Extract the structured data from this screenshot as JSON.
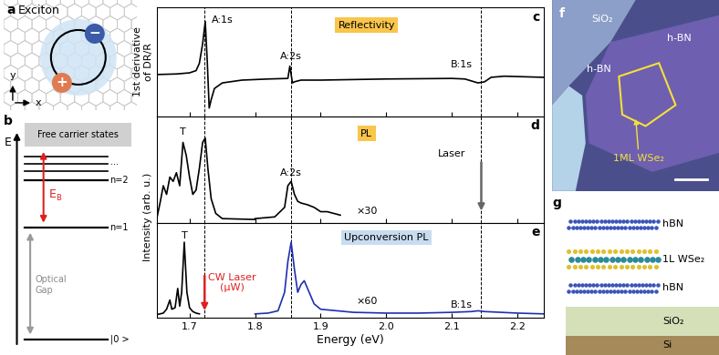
{
  "panels": {
    "a": {
      "label": "a",
      "title": "Exciton",
      "charges": [
        "−",
        "+"
      ],
      "axes": [
        "x",
        "y"
      ]
    },
    "b": {
      "label": "b",
      "energy_axis": "E",
      "continuum": "Free carrier states",
      "levels": [
        "n=1",
        "n=2"
      ],
      "more": "...",
      "binding_energy": {
        "text": "E",
        "subscript": "B"
      },
      "gap": "Optical\nGap",
      "ground": "|0 >"
    },
    "f": {
      "label": "f",
      "substrate": "SiO₂",
      "hbn": [
        "h-BN",
        "h-BN"
      ],
      "sample": "1ML WSe₂"
    },
    "g": {
      "label": "g",
      "layers": [
        "hBN",
        "1L WSe₂",
        "hBN",
        "SiO₂",
        "Si"
      ]
    }
  },
  "chart_data": [
    {
      "panel": "c",
      "type": "line",
      "ylabel": "1st derivative\nof DR/R",
      "xlim": [
        1.65,
        2.24
      ],
      "xticks": [
        1.7,
        1.8,
        1.9,
        2.0,
        2.1,
        2.2
      ],
      "ylim": [
        -0.7,
        1.25
      ],
      "tick_labels": false,
      "vlines": [
        1.723,
        1.855,
        2.145
      ],
      "box": {
        "text": "Reflectivity",
        "color": "#f9c54b",
        "x": 1.97,
        "y": 0.85
      },
      "series": [
        {
          "color": "#000000",
          "x": [
            1.65,
            1.68,
            1.7,
            1.71,
            1.715,
            1.72,
            1.724,
            1.727,
            1.73,
            1.733,
            1.738,
            1.75,
            1.78,
            1.82,
            1.85,
            1.853,
            1.857,
            1.86,
            1.87,
            1.9,
            2.0,
            2.1,
            2.12,
            2.14,
            2.15,
            2.16,
            2.18,
            2.24
          ],
          "values": [
            0.05,
            0.06,
            0.08,
            0.12,
            0.25,
            0.6,
            1.0,
            0.3,
            -0.55,
            -0.4,
            -0.2,
            -0.1,
            -0.05,
            -0.03,
            -0.02,
            0.2,
            -0.1,
            -0.08,
            -0.05,
            -0.05,
            -0.03,
            -0.02,
            -0.03,
            -0.1,
            -0.08,
            0.0,
            0.02,
            0.0
          ]
        }
      ],
      "annotations": [
        {
          "text": "A:1s",
          "x": 1.75,
          "y": 0.95
        },
        {
          "text": "A:2s",
          "x": 1.855,
          "y": 0.3
        },
        {
          "text": "B:1s",
          "x": 2.115,
          "y": 0.15
        }
      ],
      "arrows": []
    },
    {
      "panel": "d",
      "type": "line",
      "ylabel": "Intensity (arb. u.)",
      "xlim": [
        1.65,
        2.24
      ],
      "xticks": [
        1.7,
        1.8,
        1.9,
        2.0,
        2.1,
        2.2
      ],
      "ylim": [
        -0.03,
        1.2
      ],
      "tick_labels": false,
      "vlines": [
        1.723,
        1.855,
        2.145
      ],
      "box": {
        "text": "PL",
        "color": "#f9c54b",
        "x": 1.97,
        "y": 0.95
      },
      "series": [
        {
          "color": "#000000",
          "x": [
            1.65,
            1.655,
            1.66,
            1.665,
            1.67,
            1.675,
            1.68,
            1.685,
            1.69,
            1.695,
            1.7,
            1.705,
            1.71,
            1.715,
            1.72,
            1.724,
            1.728,
            1.733,
            1.74,
            1.75,
            1.8
          ],
          "values": [
            0.02,
            0.2,
            0.4,
            0.3,
            0.5,
            0.45,
            0.55,
            0.4,
            0.9,
            0.75,
            0.5,
            0.3,
            0.35,
            0.6,
            0.9,
            0.95,
            0.6,
            0.25,
            0.08,
            0.02,
            0.01
          ]
        },
        {
          "color": "#000000",
          "x": [
            1.8,
            1.83,
            1.845,
            1.85,
            1.855,
            1.86,
            1.865,
            1.87,
            1.88,
            1.89,
            1.9,
            1.91,
            1.92,
            1.93
          ],
          "values": [
            0.02,
            0.04,
            0.15,
            0.4,
            0.45,
            0.3,
            0.22,
            0.2,
            0.18,
            0.15,
            0.1,
            0.1,
            0.08,
            0.06
          ]
        }
      ],
      "annotations": [
        {
          "text": "T",
          "x": 1.69,
          "y": 0.97
        },
        {
          "text": "A:2s",
          "x": 1.855,
          "y": 0.5
        },
        {
          "text": "×30",
          "x": 1.97,
          "y": 0.05
        },
        {
          "text": "Laser",
          "x": 2.1,
          "y": 0.72
        }
      ],
      "arrows": [
        {
          "x": 2.145,
          "y_from": 0.7,
          "y_to": 0.08,
          "color": "#666666"
        }
      ]
    },
    {
      "panel": "e",
      "type": "line",
      "xlabel": "Energy (eV)",
      "xlim": [
        1.65,
        2.24
      ],
      "xticks": [
        1.7,
        1.8,
        1.9,
        2.0,
        2.1,
        2.2
      ],
      "ylim": [
        -0.03,
        1.2
      ],
      "tick_labels": "x",
      "vlines": [
        1.723,
        1.855,
        2.145
      ],
      "box": {
        "text": "Upconversion PL",
        "color": "#c8dcf0",
        "x": 2.0,
        "y": 0.95
      },
      "series": [
        {
          "color": "#000000",
          "x": [
            1.65,
            1.66,
            1.665,
            1.67,
            1.673,
            1.678,
            1.682,
            1.685,
            1.688,
            1.692,
            1.696,
            1.7,
            1.705,
            1.71,
            1.715
          ],
          "values": [
            0.01,
            0.03,
            0.08,
            0.2,
            0.08,
            0.1,
            0.35,
            0.12,
            0.3,
            0.95,
            0.3,
            0.1,
            0.05,
            0.03,
            0.02
          ]
        },
        {
          "color": "#1f2fb0",
          "x": [
            1.8,
            1.82,
            1.835,
            1.845,
            1.85,
            1.855,
            1.86,
            1.865,
            1.87,
            1.875,
            1.88,
            1.89,
            1.9,
            1.95,
            2.0,
            2.05,
            2.1,
            2.13,
            2.14,
            2.15,
            2.2,
            2.24
          ],
          "values": [
            0.02,
            0.03,
            0.06,
            0.3,
            0.7,
            0.95,
            0.6,
            0.3,
            0.4,
            0.45,
            0.35,
            0.15,
            0.08,
            0.04,
            0.03,
            0.03,
            0.04,
            0.05,
            0.06,
            0.05,
            0.03,
            0.02
          ]
        }
      ],
      "annotations": [
        {
          "text": "T",
          "x": 1.692,
          "y": 0.98
        },
        {
          "text": "CW Laser\n(μW)",
          "x": 1.765,
          "y": 0.3,
          "color": "#e02020"
        },
        {
          "text": "×60",
          "x": 1.97,
          "y": 0.12
        },
        {
          "text": "B:1s",
          "x": 2.115,
          "y": 0.08
        }
      ],
      "arrows": [
        {
          "x": 1.723,
          "y_from": 0.55,
          "y_to": 0.03,
          "color": "#e02020"
        }
      ]
    }
  ]
}
